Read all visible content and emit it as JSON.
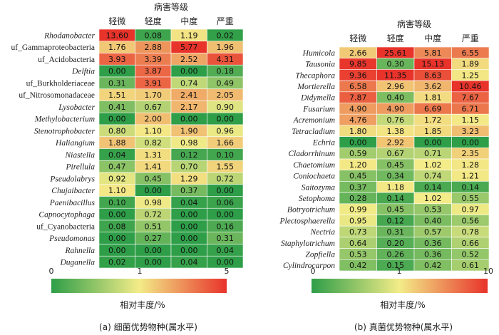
{
  "chart_data": [
    {
      "type": "heatmap",
      "title": "病害等级",
      "caption": "(a) 细菌优势物种(属水平)",
      "colorbar_label": "相对丰度/%",
      "colorbar_ticks": [
        "0",
        "1",
        "5"
      ],
      "colorbar_range": [
        0,
        5
      ],
      "columns": [
        "轻微",
        "轻度",
        "中度",
        "严重"
      ],
      "rows": [
        {
          "name": "Rhodanobacter",
          "italic": true,
          "values": [
            "13.60",
            "0.08",
            "1.19",
            "0.02"
          ]
        },
        {
          "name": "uf_Gammaproteobacteria",
          "italic": false,
          "values": [
            "1.76",
            "2.88",
            "5.77",
            "1.96"
          ]
        },
        {
          "name": "uf_Acidobacteria",
          "italic": false,
          "values": [
            "3.93",
            "3.39",
            "2.52",
            "4.31"
          ]
        },
        {
          "name": "Delftia",
          "italic": true,
          "values": [
            "0.00",
            "3.87",
            "0.00",
            "0.18"
          ]
        },
        {
          "name": "uf_Burkholderiaceae",
          "italic": false,
          "values": [
            "0.31",
            "3.91",
            "0.74",
            "0.49"
          ]
        },
        {
          "name": "uf_Nitrosomonadaceae",
          "italic": false,
          "values": [
            "1.51",
            "1.70",
            "2.41",
            "2.05"
          ]
        },
        {
          "name": "Lysobacter",
          "italic": true,
          "values": [
            "0.41",
            "0.67",
            "2.17",
            "0.90"
          ]
        },
        {
          "name": "Methylobacterium",
          "italic": true,
          "values": [
            "0.00",
            "2.00",
            "0.00",
            "0.00"
          ]
        },
        {
          "name": "Stenotrophobacter",
          "italic": true,
          "values": [
            "0.80",
            "1.10",
            "1.90",
            "0.96"
          ]
        },
        {
          "name": "Haliangium",
          "italic": true,
          "values": [
            "1.88",
            "0.82",
            "0.98",
            "1.66"
          ]
        },
        {
          "name": "Niastella",
          "italic": true,
          "values": [
            "0.04",
            "1.31",
            "0.12",
            "0.10"
          ]
        },
        {
          "name": "Pirellula",
          "italic": true,
          "values": [
            "0.47",
            "1.41",
            "0.70",
            "1.55"
          ]
        },
        {
          "name": "Pseudolabrys",
          "italic": true,
          "values": [
            "0.92",
            "0.45",
            "1.29",
            "0.72"
          ]
        },
        {
          "name": "Chujaibacter",
          "italic": true,
          "values": [
            "1.10",
            "0.00",
            "0.37",
            "0.00"
          ]
        },
        {
          "name": "Paenibacillus",
          "italic": true,
          "values": [
            "0.10",
            "0.98",
            "0.04",
            "0.06"
          ]
        },
        {
          "name": "Capnocytophaga",
          "italic": true,
          "values": [
            "0.00",
            "0.72",
            "0.00",
            "0.00"
          ]
        },
        {
          "name": "uf_Cyanobacteria",
          "italic": false,
          "values": [
            "0.08",
            "0.51",
            "0.00",
            "0.16"
          ]
        },
        {
          "name": "Pseudomonas",
          "italic": true,
          "values": [
            "0.00",
            "0.27",
            "0.00",
            "0.31"
          ]
        },
        {
          "name": "Rahnella",
          "italic": true,
          "values": [
            "0.00",
            "0.00",
            "0.00",
            "0.04"
          ]
        },
        {
          "name": "Duganella",
          "italic": true,
          "values": [
            "0.02",
            "0.00",
            "0.04",
            "0.00"
          ]
        }
      ]
    },
    {
      "type": "heatmap",
      "title": "病害等级",
      "caption": "(b) 真菌优势物种(属水平)",
      "colorbar_label": "相对丰度/%",
      "colorbar_ticks": [
        "0",
        "1",
        "10"
      ],
      "colorbar_range": [
        0,
        10
      ],
      "columns": [
        "轻微",
        "轻度",
        "中度",
        "严重"
      ],
      "rows": [
        {
          "name": "Humicola",
          "italic": true,
          "values": [
            "2.66",
            "25.61",
            "5.81",
            "6.55"
          ]
        },
        {
          "name": "Tausonia",
          "italic": true,
          "values": [
            "9.85",
            "0.30",
            "15.13",
            "1.89"
          ]
        },
        {
          "name": "Thecaphora",
          "italic": true,
          "values": [
            "9.36",
            "11.35",
            "8.63",
            "1.25"
          ]
        },
        {
          "name": "Mortierella",
          "italic": true,
          "values": [
            "6.58",
            "2.96",
            "3.62",
            "10.46"
          ]
        },
        {
          "name": "Didymella",
          "italic": true,
          "values": [
            "7.87",
            "0.40",
            "1.81",
            "7.67"
          ]
        },
        {
          "name": "Fusarium",
          "italic": true,
          "values": [
            "4.90",
            "4.90",
            "6.69",
            "6.71"
          ]
        },
        {
          "name": "Acremonium",
          "italic": true,
          "values": [
            "4.76",
            "0.76",
            "1.72",
            "1.15"
          ]
        },
        {
          "name": "Tetracladium",
          "italic": true,
          "values": [
            "1.80",
            "1.38",
            "1.85",
            "3.23"
          ]
        },
        {
          "name": "Echria",
          "italic": true,
          "values": [
            "0.00",
            "2.92",
            "0.00",
            "0.00"
          ]
        },
        {
          "name": "Cladorrhinum",
          "italic": true,
          "values": [
            "0.59",
            "0.67",
            "0.71",
            "2.35"
          ]
        },
        {
          "name": "Chaetomium",
          "italic": true,
          "values": [
            "1.20",
            "0.45",
            "1.02",
            "1.28"
          ]
        },
        {
          "name": "Coniochaeta",
          "italic": true,
          "values": [
            "0.45",
            "0.34",
            "0.74",
            "1.21"
          ]
        },
        {
          "name": "Saitozyma",
          "italic": true,
          "values": [
            "0.37",
            "1.18",
            "0.14",
            "0.14"
          ]
        },
        {
          "name": "Setophoma",
          "italic": true,
          "values": [
            "0.28",
            "0.14",
            "1.02",
            "0.55"
          ]
        },
        {
          "name": "Botryotrichum",
          "italic": true,
          "values": [
            "0.99",
            "0.45",
            "0.53",
            "0.97"
          ]
        },
        {
          "name": "Plectosphaerella",
          "italic": true,
          "values": [
            "0.95",
            "0.12",
            "0.40",
            "0.56"
          ]
        },
        {
          "name": "Nectria",
          "italic": true,
          "values": [
            "0.73",
            "0.31",
            "0.57",
            "0.78"
          ]
        },
        {
          "name": "Staphylotrichum",
          "italic": true,
          "values": [
            "0.64",
            "0.20",
            "0.36",
            "0.66"
          ]
        },
        {
          "name": "Zopfiella",
          "italic": true,
          "values": [
            "0.53",
            "0.26",
            "0.36",
            "0.52"
          ]
        },
        {
          "name": "Cylindrocarpon",
          "italic": true,
          "values": [
            "0.42",
            "0.15",
            "0.42",
            "0.61"
          ]
        }
      ]
    }
  ],
  "colors": {
    "low": "#2e9e48",
    "mid": "#f3ec88",
    "high": "#e8332b"
  }
}
